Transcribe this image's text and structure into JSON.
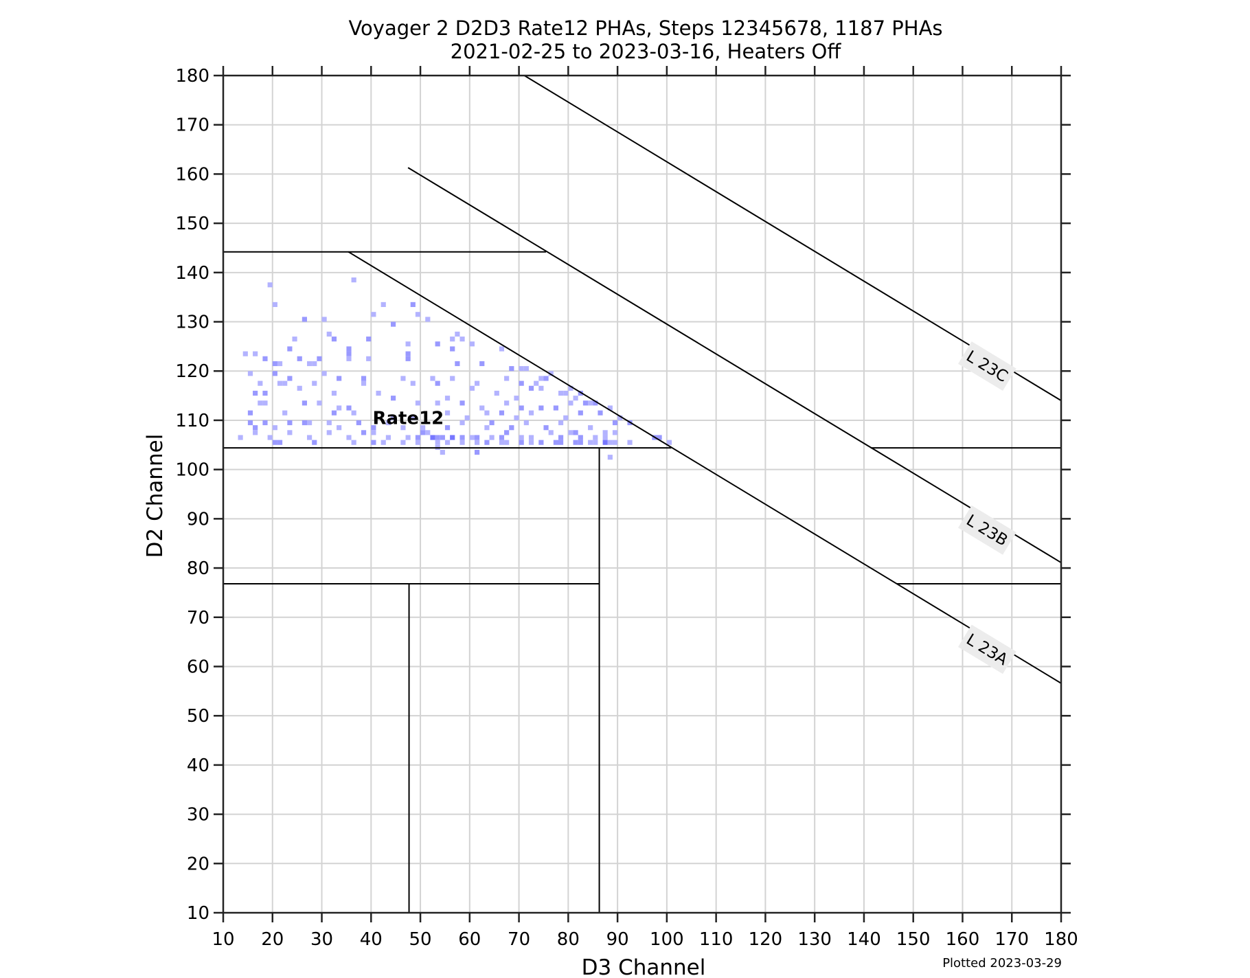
{
  "chart_data": {
    "type": "heatmap",
    "title": "Voyager 2 D2D3 Rate12 PHAs, Steps 12345678, 1187 PHAs",
    "subtitle": "2021-02-25 to 2023-03-16, Heaters Off",
    "xlabel": "D3 Channel",
    "ylabel": "D2 Channel",
    "xlim": [
      10,
      180
    ],
    "ylim": [
      10,
      180
    ],
    "xticks": [
      10,
      20,
      30,
      40,
      50,
      60,
      70,
      80,
      90,
      100,
      110,
      120,
      130,
      140,
      150,
      160,
      170,
      180
    ],
    "yticks": [
      10,
      20,
      30,
      40,
      50,
      60,
      70,
      80,
      90,
      100,
      110,
      120,
      130,
      140,
      150,
      160,
      170,
      180
    ],
    "grid": true,
    "footnote": "Plotted 2023-03-29",
    "region_labels": [
      {
        "text": "Rate12",
        "x": 40.3,
        "y": 110.5
      }
    ],
    "diagonal_lines": [
      {
        "name": "L 23A",
        "x0": 35.4,
        "y0": 144.2,
        "x1": 180,
        "y1": 56.6,
        "label_x": 165,
        "label_y": 63.5
      },
      {
        "name": "L 23B",
        "x0": 47.5,
        "y0": 161.3,
        "x1": 180,
        "y1": 81.1,
        "label_x": 165,
        "label_y": 87.7
      },
      {
        "name": "L 23C",
        "x0": 71.1,
        "y0": 180,
        "x1": 180,
        "y1": 114.0,
        "label_x": 165,
        "label_y": 121.0
      }
    ],
    "boundary_lines": [
      {
        "x0": 10,
        "y0": 144.2,
        "x1": 75.5,
        "y1": 144.2
      },
      {
        "x0": 10,
        "y0": 104.4,
        "x1": 100.9,
        "y1": 104.4
      },
      {
        "x0": 141.4,
        "y0": 104.4,
        "x1": 180,
        "y1": 104.4
      },
      {
        "x0": 86.3,
        "y0": 10,
        "x1": 86.3,
        "y1": 104.4
      },
      {
        "x0": 10,
        "y0": 76.8,
        "x1": 86.3,
        "y1": 76.8
      },
      {
        "x0": 146.7,
        "y0": 76.8,
        "x1": 180,
        "y1": 76.8
      },
      {
        "x0": 47.7,
        "y0": 10,
        "x1": 47.7,
        "y1": 76.8
      }
    ],
    "colors": {
      "low": "#b3b3ff",
      "mid": "#9999ff",
      "high": "#7777ff",
      "grid": "#d3d3d3",
      "label_box": "#ececec"
    },
    "cells_note": "[D3, D2, level] 1=light 2=medium 3=dark (approximate reading)",
    "cells": [
      [
        19,
        137,
        1
      ],
      [
        36,
        138,
        1
      ],
      [
        20,
        133,
        1
      ],
      [
        42,
        133,
        1
      ],
      [
        48,
        133,
        2
      ],
      [
        40,
        131,
        1
      ],
      [
        49,
        131,
        1
      ],
      [
        26,
        130,
        2
      ],
      [
        30,
        130,
        1
      ],
      [
        51,
        130,
        1
      ],
      [
        44,
        129,
        2
      ],
      [
        31,
        127,
        1
      ],
      [
        57,
        127,
        1
      ],
      [
        32,
        126,
        2
      ],
      [
        24,
        126,
        1
      ],
      [
        39,
        126,
        2
      ],
      [
        56,
        126,
        1
      ],
      [
        58,
        126,
        1
      ],
      [
        47,
        125,
        1
      ],
      [
        53,
        125,
        2
      ],
      [
        60,
        125,
        1
      ],
      [
        66,
        124,
        1
      ],
      [
        35,
        124,
        2
      ],
      [
        35,
        123,
        2
      ],
      [
        14,
        123,
        1
      ],
      [
        16,
        123,
        1
      ],
      [
        23,
        124,
        2
      ],
      [
        29,
        122,
        2
      ],
      [
        18,
        122,
        2
      ],
      [
        25,
        122,
        2
      ],
      [
        35,
        122,
        1
      ],
      [
        39,
        122,
        1
      ],
      [
        47,
        122,
        2
      ],
      [
        47,
        123,
        2
      ],
      [
        20,
        121,
        2
      ],
      [
        21,
        121,
        1
      ],
      [
        28,
        121,
        1
      ],
      [
        27,
        121,
        1
      ],
      [
        57,
        121,
        2
      ],
      [
        62,
        121,
        2
      ],
      [
        56,
        124,
        2
      ],
      [
        15,
        119,
        1
      ],
      [
        20,
        119,
        2
      ],
      [
        30,
        119,
        1
      ],
      [
        68,
        120,
        2
      ],
      [
        70,
        120,
        1
      ],
      [
        71,
        120,
        1
      ],
      [
        74,
        118,
        1
      ],
      [
        67,
        118,
        1
      ],
      [
        21,
        117,
        1
      ],
      [
        22,
        117,
        1
      ],
      [
        17,
        117,
        1
      ],
      [
        28,
        117,
        1
      ],
      [
        23,
        118,
        2
      ],
      [
        33,
        118,
        2
      ],
      [
        38,
        118,
        2
      ],
      [
        38,
        117,
        1
      ],
      [
        46,
        118,
        1
      ],
      [
        52,
        118,
        1
      ],
      [
        48,
        117,
        1
      ],
      [
        53,
        117,
        2
      ],
      [
        56,
        118,
        1
      ],
      [
        61,
        117,
        1
      ],
      [
        70,
        117,
        2
      ],
      [
        73,
        117,
        1
      ],
      [
        75,
        118,
        2
      ],
      [
        76,
        119,
        1
      ],
      [
        16,
        115,
        2
      ],
      [
        18,
        115,
        2
      ],
      [
        25,
        116,
        1
      ],
      [
        32,
        115,
        1
      ],
      [
        41,
        115,
        1
      ],
      [
        44,
        114,
        2
      ],
      [
        55,
        114,
        1
      ],
      [
        60,
        116,
        1
      ],
      [
        65,
        115,
        1
      ],
      [
        69,
        114,
        1
      ],
      [
        72,
        116,
        2
      ],
      [
        74,
        116,
        1
      ],
      [
        78,
        115,
        1
      ],
      [
        79,
        115,
        1
      ],
      [
        80,
        116,
        1
      ],
      [
        81,
        114,
        1
      ],
      [
        82,
        115,
        2
      ],
      [
        17,
        113,
        1
      ],
      [
        18,
        113,
        1
      ],
      [
        26,
        113,
        2
      ],
      [
        29,
        113,
        1
      ],
      [
        33,
        112,
        1
      ],
      [
        35,
        112,
        2
      ],
      [
        49,
        113,
        1
      ],
      [
        53,
        113,
        1
      ],
      [
        58,
        113,
        2
      ],
      [
        62,
        112,
        1
      ],
      [
        67,
        113,
        1
      ],
      [
        70,
        112,
        2
      ],
      [
        74,
        112,
        2
      ],
      [
        77,
        112,
        2
      ],
      [
        80,
        113,
        1
      ],
      [
        83,
        113,
        2
      ],
      [
        84,
        113,
        1
      ],
      [
        85,
        113,
        2
      ],
      [
        15,
        111,
        2
      ],
      [
        22,
        111,
        1
      ],
      [
        32,
        111,
        2
      ],
      [
        36,
        111,
        1
      ],
      [
        44,
        110,
        1
      ],
      [
        48,
        110,
        1
      ],
      [
        55,
        111,
        1
      ],
      [
        59,
        110,
        1
      ],
      [
        63,
        111,
        1
      ],
      [
        66,
        111,
        2
      ],
      [
        69,
        110,
        1
      ],
      [
        72,
        111,
        1
      ],
      [
        79,
        110,
        1
      ],
      [
        82,
        111,
        2
      ],
      [
        86,
        111,
        2
      ],
      [
        88,
        112,
        1
      ],
      [
        90,
        110,
        1
      ],
      [
        15,
        109,
        2
      ],
      [
        16,
        108,
        2
      ],
      [
        18,
        109,
        2
      ],
      [
        20,
        108,
        1
      ],
      [
        23,
        109,
        2
      ],
      [
        26,
        109,
        2
      ],
      [
        27,
        109,
        1
      ],
      [
        31,
        109,
        1
      ],
      [
        33,
        108,
        1
      ],
      [
        37,
        109,
        2
      ],
      [
        40,
        108,
        2
      ],
      [
        43,
        109,
        1
      ],
      [
        46,
        108,
        1
      ],
      [
        50,
        108,
        1
      ],
      [
        51,
        107,
        1
      ],
      [
        55,
        108,
        2
      ],
      [
        58,
        109,
        1
      ],
      [
        63,
        108,
        1
      ],
      [
        64,
        109,
        2
      ],
      [
        68,
        108,
        2
      ],
      [
        71,
        109,
        1
      ],
      [
        75,
        108,
        2
      ],
      [
        78,
        109,
        1
      ],
      [
        81,
        107,
        2
      ],
      [
        84,
        108,
        1
      ],
      [
        87,
        107,
        1
      ],
      [
        89,
        109,
        2
      ],
      [
        92,
        109,
        2
      ],
      [
        13,
        106,
        1
      ],
      [
        16,
        107,
        1
      ],
      [
        19,
        106,
        1
      ],
      [
        23,
        107,
        1
      ],
      [
        27,
        106,
        1
      ],
      [
        31,
        107,
        1
      ],
      [
        35,
        106,
        1
      ],
      [
        38,
        107,
        2
      ],
      [
        40,
        107,
        1
      ],
      [
        43,
        106,
        1
      ],
      [
        47,
        106,
        1
      ],
      [
        49,
        106,
        2
      ],
      [
        50,
        107,
        2
      ],
      [
        52,
        106,
        3
      ],
      [
        53,
        106,
        2
      ],
      [
        54,
        106,
        2
      ],
      [
        56,
        106,
        3
      ],
      [
        58,
        106,
        2
      ],
      [
        60,
        106,
        1
      ],
      [
        61,
        106,
        2
      ],
      [
        64,
        106,
        1
      ],
      [
        66,
        106,
        2
      ],
      [
        67,
        107,
        2
      ],
      [
        70,
        106,
        1
      ],
      [
        72,
        106,
        1
      ],
      [
        76,
        107,
        1
      ],
      [
        78,
        106,
        2
      ],
      [
        80,
        107,
        1
      ],
      [
        82,
        106,
        2
      ],
      [
        85,
        106,
        1
      ],
      [
        87,
        106,
        1
      ],
      [
        89,
        107,
        1
      ],
      [
        97,
        106,
        2
      ],
      [
        98,
        106,
        2
      ],
      [
        20,
        105,
        2
      ],
      [
        21,
        105,
        2
      ],
      [
        28,
        105,
        2
      ],
      [
        36,
        105,
        1
      ],
      [
        40,
        105,
        2
      ],
      [
        42,
        105,
        1
      ],
      [
        46,
        105,
        1
      ],
      [
        49,
        105,
        1
      ],
      [
        53,
        105,
        1
      ],
      [
        55,
        105,
        1
      ],
      [
        58,
        105,
        1
      ],
      [
        61,
        105,
        1
      ],
      [
        63,
        105,
        2
      ],
      [
        66,
        105,
        1
      ],
      [
        67,
        105,
        1
      ],
      [
        70,
        105,
        2
      ],
      [
        72,
        105,
        1
      ],
      [
        74,
        105,
        2
      ],
      [
        77,
        105,
        2
      ],
      [
        78,
        105,
        2
      ],
      [
        81,
        105,
        2
      ],
      [
        82,
        105,
        2
      ],
      [
        84,
        105,
        1
      ],
      [
        85,
        105,
        1
      ],
      [
        87,
        105,
        3
      ],
      [
        88,
        105,
        1
      ],
      [
        89,
        105,
        1
      ],
      [
        92,
        105,
        1
      ],
      [
        100,
        105,
        1
      ],
      [
        53,
        104,
        1
      ],
      [
        54,
        103,
        1
      ],
      [
        61,
        103,
        2
      ],
      [
        88,
        102,
        1
      ]
    ]
  }
}
